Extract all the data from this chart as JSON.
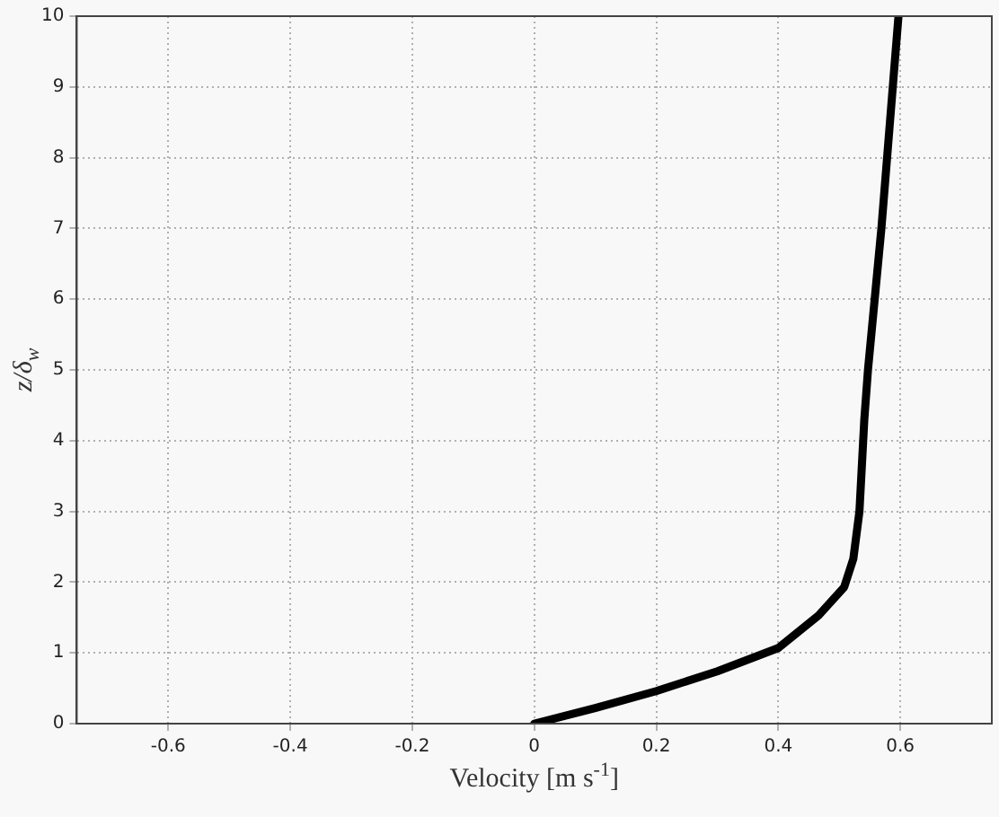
{
  "chart_data": {
    "type": "line",
    "xlabel": "Velocity [m s$^{-1}$]",
    "ylabel": "z/δ$_{w}$",
    "x": [
      0,
      0.1,
      0.2,
      0.3,
      0.4,
      0.466,
      0.508,
      0.523,
      0.533,
      0.541,
      0.547,
      0.569,
      0.597
    ],
    "series": [
      {
        "color": "#000000",
        "values": [
          0,
          0.22,
          0.46,
          0.74,
          1.07,
          1.53,
          1.93,
          2.33,
          3.0,
          4.3,
          5,
          7,
          10
        ]
      }
    ],
    "xlim": [
      -0.75,
      0.75
    ],
    "xticks": [
      -0.6,
      -0.4,
      -0.2,
      0,
      0.2,
      0.4,
      0.6
    ],
    "ylim": [
      0,
      10
    ],
    "yticks": [
      0,
      1,
      2,
      3,
      4,
      5,
      6,
      7,
      8,
      9,
      10
    ],
    "grid": true,
    "legend": false,
    "marker": "none",
    "line_style": "solid"
  }
}
